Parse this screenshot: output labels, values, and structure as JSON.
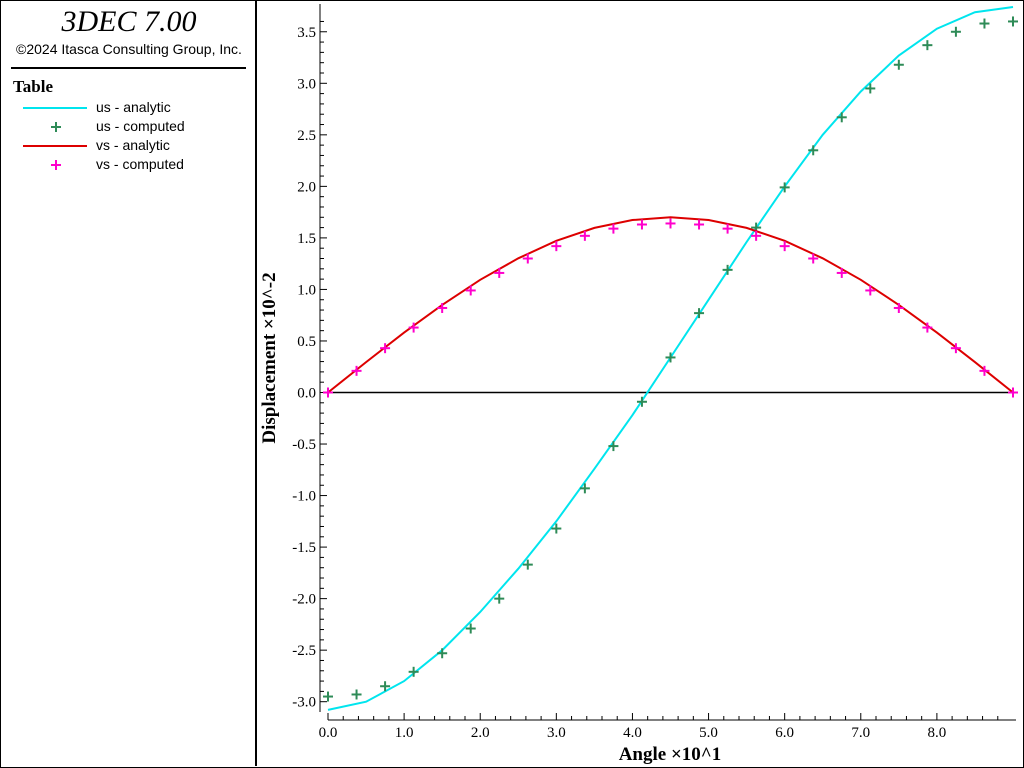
{
  "app": {
    "title": "3DEC 7.00",
    "copyright": "©2024 Itasca Consulting Group, Inc."
  },
  "legend": {
    "title": "Table",
    "items": [
      {
        "label": "us - analytic",
        "style": "line",
        "color": "#00e5ee"
      },
      {
        "label": "us - computed",
        "style": "plus",
        "color": "#2e8b57"
      },
      {
        "label": "vs - analytic",
        "style": "line",
        "color": "#dd0000"
      },
      {
        "label": "vs - computed",
        "style": "plus",
        "color": "#ff00cc"
      }
    ]
  },
  "chart_data": {
    "type": "line",
    "xlabel": "Angle ×10^1",
    "ylabel": "Displacement ×10^-2",
    "xlim": [
      0,
      9
    ],
    "ylim": [
      -3.1,
      3.75
    ],
    "x_ticks": [
      "0.0",
      "1.0",
      "2.0",
      "3.0",
      "4.0",
      "5.0",
      "6.0",
      "7.0",
      "8.0"
    ],
    "y_ticks": [
      "-3.0",
      "-2.5",
      "-2.0",
      "-1.5",
      "-1.0",
      "-0.5",
      "0.0",
      "0.5",
      "1.0",
      "1.5",
      "2.0",
      "2.5",
      "3.0",
      "3.5"
    ],
    "grid": false,
    "zero_line": true,
    "series": [
      {
        "name": "us - analytic",
        "style": "line",
        "color": "#00e5ee",
        "x": [
          0.0,
          0.5,
          1.0,
          1.5,
          2.0,
          2.5,
          3.0,
          3.5,
          4.0,
          4.5,
          5.0,
          5.5,
          6.0,
          6.5,
          7.0,
          7.5,
          8.0,
          8.5,
          9.0
        ],
        "y": [
          -3.08,
          -3.0,
          -2.8,
          -2.5,
          -2.13,
          -1.71,
          -1.25,
          -0.74,
          -0.22,
          0.34,
          0.9,
          1.46,
          2.0,
          2.5,
          2.92,
          3.27,
          3.53,
          3.69,
          3.74
        ]
      },
      {
        "name": "us - computed",
        "style": "plus",
        "color": "#2e8b57",
        "x": [
          0.0,
          0.375,
          0.75,
          1.125,
          1.5,
          1.875,
          2.25,
          2.625,
          3.0,
          3.375,
          3.75,
          4.125,
          4.5,
          4.875,
          5.25,
          5.625,
          6.0,
          6.375,
          6.75,
          7.125,
          7.5,
          7.875,
          8.25,
          8.625,
          9.0
        ],
        "y": [
          -2.95,
          -2.93,
          -2.85,
          -2.71,
          -2.53,
          -2.29,
          -2.0,
          -1.67,
          -1.32,
          -0.93,
          -0.52,
          -0.09,
          0.34,
          0.77,
          1.19,
          1.6,
          1.99,
          2.35,
          2.67,
          2.95,
          3.18,
          3.37,
          3.5,
          3.58,
          3.6
        ]
      },
      {
        "name": "vs - analytic",
        "style": "line",
        "color": "#dd0000",
        "x": [
          0.0,
          0.5,
          1.0,
          1.5,
          2.0,
          2.5,
          3.0,
          3.5,
          4.0,
          4.5,
          5.0,
          5.5,
          6.0,
          6.5,
          7.0,
          7.5,
          8.0,
          8.5,
          9.0
        ],
        "y": [
          0.0,
          0.295,
          0.581,
          0.85,
          1.093,
          1.302,
          1.472,
          1.597,
          1.674,
          1.7,
          1.674,
          1.597,
          1.472,
          1.302,
          1.093,
          0.85,
          0.581,
          0.295,
          0.0
        ]
      },
      {
        "name": "vs - computed",
        "style": "plus",
        "color": "#ff00cc",
        "x": [
          0.0,
          0.375,
          0.75,
          1.125,
          1.5,
          1.875,
          2.25,
          2.625,
          3.0,
          3.375,
          3.75,
          4.125,
          4.5,
          4.875,
          5.25,
          5.625,
          6.0,
          6.375,
          6.75,
          7.125,
          7.5,
          7.875,
          8.25,
          8.625,
          9.0
        ],
        "y": [
          0.0,
          0.21,
          0.43,
          0.63,
          0.82,
          0.99,
          1.16,
          1.3,
          1.42,
          1.52,
          1.59,
          1.63,
          1.64,
          1.63,
          1.59,
          1.52,
          1.42,
          1.3,
          1.16,
          0.99,
          0.82,
          0.63,
          0.43,
          0.21,
          0.0
        ]
      }
    ]
  }
}
